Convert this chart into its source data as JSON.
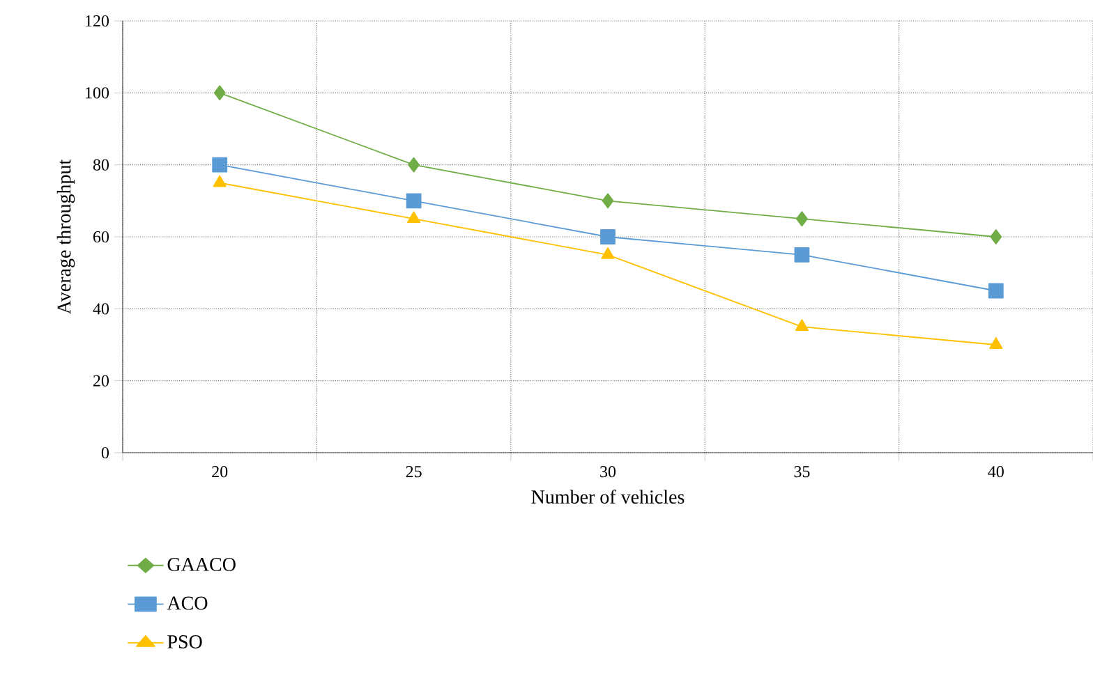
{
  "chart_data": {
    "type": "line",
    "xlabel": "Number of vehicles",
    "ylabel": "Average throughput",
    "categories": [
      "20",
      "25",
      "30",
      "35",
      "40"
    ],
    "ylim": [
      0,
      120
    ],
    "yticks": [
      0,
      20,
      40,
      60,
      80,
      100,
      120
    ],
    "grid": true,
    "legend": "bottom",
    "line_style": "solid",
    "series": [
      {
        "name": "GAACO",
        "color": "#70ad47",
        "marker": "diamond",
        "values": [
          100,
          80,
          70,
          65,
          60
        ]
      },
      {
        "name": "ACO",
        "color": "#5b9bd5",
        "marker": "square",
        "values": [
          80,
          70,
          60,
          55,
          45
        ]
      },
      {
        "name": "PSO",
        "color": "#ffc000",
        "marker": "triangle",
        "values": [
          75,
          65,
          55,
          35,
          30
        ]
      }
    ]
  }
}
